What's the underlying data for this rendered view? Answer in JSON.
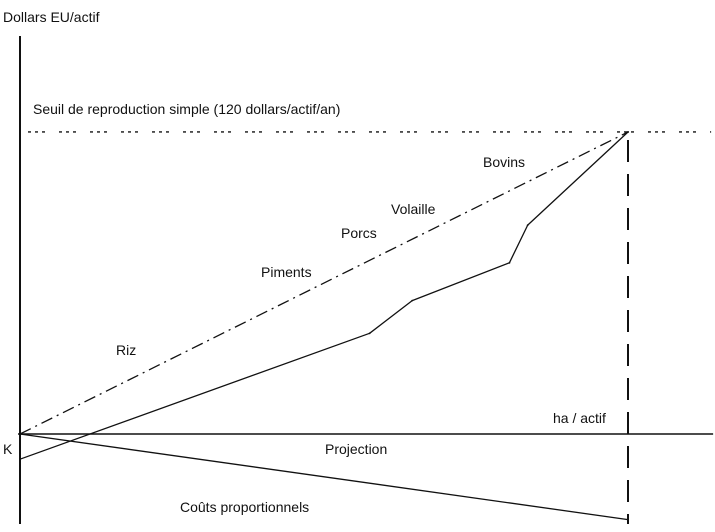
{
  "chart_data": {
    "type": "line",
    "y_axis_label": "Dollars EU/actif",
    "x_axis_label": "ha / actif",
    "origin_label": "K",
    "threshold": {
      "label": "Seuil de reproduction simple (120 dollars/actif/an)",
      "value": 120,
      "style": "dotted"
    },
    "series": [
      {
        "style": "dash-dot",
        "label": "",
        "points": [
          [
            0,
            0
          ],
          [
            100,
            120
          ]
        ],
        "annotations": [
          "Riz",
          "Piments",
          "Porcs",
          "Volaille",
          "Bovins"
        ]
      },
      {
        "style": "solid",
        "label": "",
        "points": [
          [
            0,
            -10
          ],
          [
            57.5,
            40
          ],
          [
            64.5,
            53
          ],
          [
            80.5,
            68
          ],
          [
            83.5,
            83
          ],
          [
            100,
            120
          ]
        ]
      },
      {
        "style": "solid",
        "label": "Coûts proportionnels",
        "points": [
          [
            0,
            0
          ],
          [
            100,
            -34
          ]
        ]
      }
    ],
    "projection": {
      "label": "Projection",
      "x_value": 100,
      "style": "long-dash"
    },
    "x_range": [
      0,
      114
    ],
    "y_range": [
      -34,
      160
    ]
  }
}
